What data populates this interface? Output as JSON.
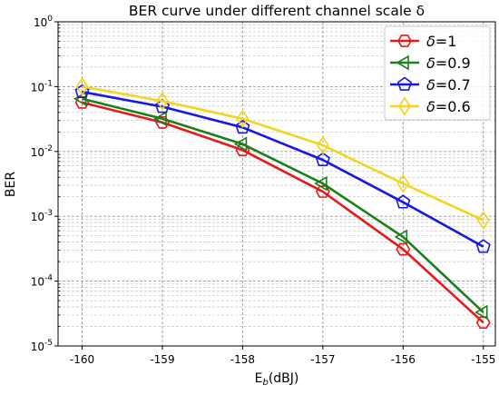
{
  "chart_data": {
    "type": "line",
    "title": "BER curve under different channel scale δ",
    "xlabel_main": "E",
    "xlabel_sub": "b",
    "xlabel_unit": "(dBJ)",
    "ylabel": "BER",
    "x": [
      -160,
      -159,
      -158,
      -157,
      -156,
      -155
    ],
    "x_ticks": [
      "-160",
      "-159",
      "-158",
      "-157",
      "-156",
      "-155"
    ],
    "xlim": [
      -160.3,
      -154.85
    ],
    "y_scale": "log",
    "ylim": [
      1e-05,
      1
    ],
    "y_ticks": [
      {
        "exp": "-5",
        "value": 1e-05
      },
      {
        "exp": "-4",
        "value": 0.0001
      },
      {
        "exp": "-3",
        "value": 0.001
      },
      {
        "exp": "-2",
        "value": 0.01
      },
      {
        "exp": "-1",
        "value": 0.1
      },
      {
        "exp": "0",
        "value": 1
      }
    ],
    "y_tick_base": "10",
    "grid": true,
    "legend_position": "top-right",
    "series": [
      {
        "name_symbol": "δ",
        "name_value": "=1",
        "color": "#e8191a",
        "marker": "hexagon",
        "values": [
          0.057,
          0.028,
          0.0105,
          0.0024,
          0.00031,
          2.3e-05
        ]
      },
      {
        "name_symbol": "δ",
        "name_value": "=0.9",
        "color": "#1b7f1b",
        "marker": "triangle-left",
        "values": [
          0.065,
          0.032,
          0.013,
          0.0032,
          0.00048,
          3.3e-05
        ]
      },
      {
        "name_symbol": "δ",
        "name_value": "=0.7",
        "color": "#1717e6",
        "marker": "pentagon",
        "values": [
          0.083,
          0.049,
          0.0235,
          0.0074,
          0.00165,
          0.00034
        ]
      },
      {
        "name_symbol": "δ",
        "name_value": "=0.6",
        "color": "#f2d51c",
        "marker": "diamond",
        "values": [
          0.1,
          0.06,
          0.032,
          0.0125,
          0.0032,
          0.00087
        ]
      }
    ]
  }
}
